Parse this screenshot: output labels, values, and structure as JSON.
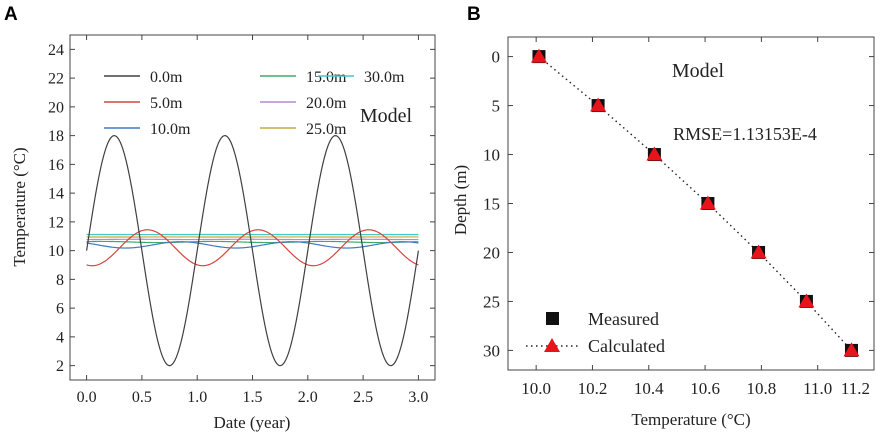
{
  "chart_data": [
    {
      "panel_label": "A",
      "type": "line",
      "title": "",
      "xlabel": "Date (year)",
      "ylabel": "Temperature (°C)",
      "xlim": [
        -0.15,
        3.15
      ],
      "ylim": [
        1,
        25
      ],
      "xticks": [
        "0.0",
        "0.5",
        "1.0",
        "1.5",
        "2.0",
        "2.5",
        "3.0"
      ],
      "xtick_values": [
        0,
        0.5,
        1,
        1.5,
        2,
        2.5,
        3
      ],
      "yticks": [
        "2",
        "4",
        "6",
        "8",
        "10",
        "12",
        "14",
        "16",
        "18",
        "20",
        "22",
        "24"
      ],
      "ytick_values": [
        2,
        4,
        6,
        8,
        10,
        12,
        14,
        16,
        18,
        20,
        22,
        24
      ],
      "annotation": "Model",
      "legend_position": "top",
      "x_range": [
        0,
        3
      ],
      "series": [
        {
          "name": "0.0m",
          "color": "#404040",
          "mean": 10,
          "amplitude": 8,
          "phase_year": 0
        },
        {
          "name": "5.0m",
          "color": "#d6453d",
          "mean": 10.2,
          "amplitude": 1.25,
          "phase_year": 0.3
        },
        {
          "name": "10.0m",
          "color": "#3f7bc1",
          "mean": 10.4,
          "amplitude": 0.22,
          "phase_year": 0.6
        },
        {
          "name": "15.0m",
          "color": "#3daa6b",
          "mean": 10.6,
          "amplitude": 0.04,
          "phase_year": 0.9
        },
        {
          "name": "20.0m",
          "color": "#b58ad1",
          "mean": 10.78,
          "amplitude": 0.01,
          "phase_year": 1.2
        },
        {
          "name": "25.0m",
          "color": "#c4a93a",
          "mean": 10.95,
          "amplitude": 0.003,
          "phase_year": 1.5
        },
        {
          "name": "30.0m",
          "color": "#45c9c9",
          "mean": 11.12,
          "amplitude": 0.001,
          "phase_year": 1.8
        }
      ]
    },
    {
      "panel_label": "B",
      "type": "scatter",
      "title": "",
      "xlabel": "Temperature (°C)",
      "ylabel": "Depth (m)",
      "xlim": [
        9.9,
        11.2
      ],
      "ylim": [
        32,
        -2
      ],
      "xticks": [
        "10.0",
        "10.2",
        "10.4",
        "10.6",
        "10.8",
        "11.0",
        "11.2"
      ],
      "xtick_values": [
        10.0,
        10.2,
        10.4,
        10.6,
        10.8,
        11.0,
        11.2
      ],
      "yticks": [
        "0",
        "5",
        "10",
        "15",
        "20",
        "25",
        "30"
      ],
      "ytick_values": [
        0,
        5,
        10,
        15,
        20,
        25,
        30
      ],
      "annotation": "Model",
      "rmse_text": "RMSE=1.13153E-4",
      "legend_position": "bottom-left",
      "series": [
        {
          "name": "Measured",
          "marker": "square",
          "color": "#111111",
          "x": [
            10.01,
            10.22,
            10.42,
            10.61,
            10.79,
            10.96,
            11.12
          ],
          "y": [
            0,
            5,
            10,
            15,
            20,
            25,
            30
          ]
        },
        {
          "name": "Calculated",
          "marker": "triangle",
          "color": "#e8141b",
          "x": [
            10.01,
            10.22,
            10.42,
            10.61,
            10.79,
            10.96,
            11.12
          ],
          "y": [
            0,
            5,
            10,
            15,
            20,
            25,
            30
          ]
        }
      ]
    }
  ]
}
